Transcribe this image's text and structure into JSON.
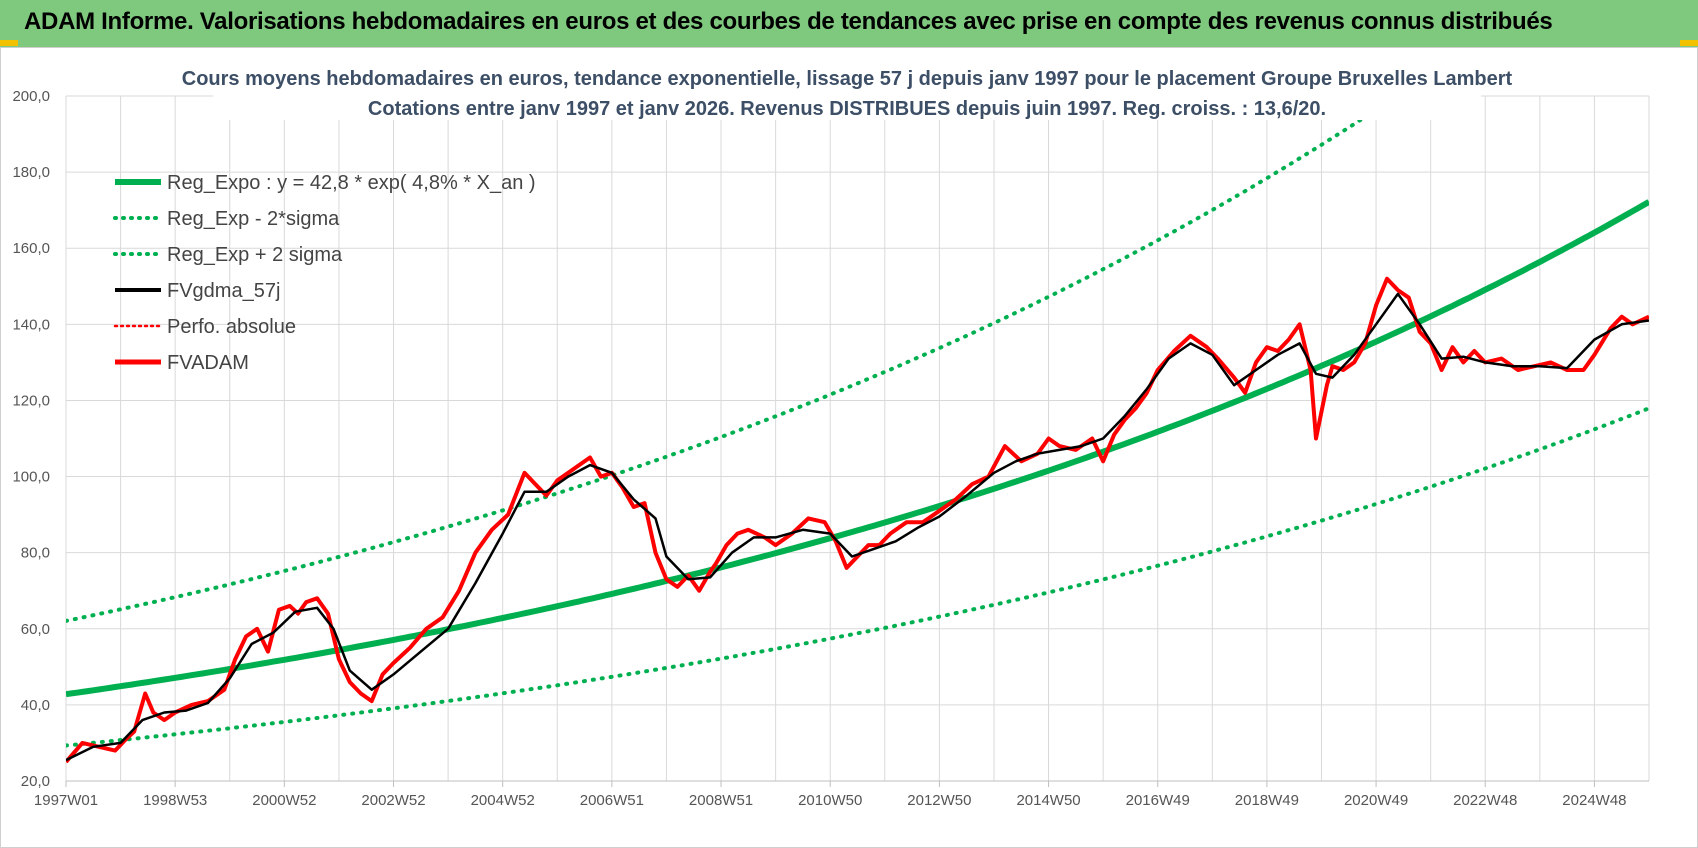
{
  "banner": {
    "title": "ADAM Informe. Valorisations hebdomadaires en euros et des courbes de tendances avec prise en compte des revenus connus distribués"
  },
  "colors": {
    "green": "#00b050",
    "black": "#000000",
    "red": "#ff0000",
    "grid": "#d9d9d9",
    "title": "#3d4f66",
    "banner": "#7fc97f"
  },
  "chart_data": {
    "type": "line",
    "title": "Cours moyens hebdomadaires en euros, tendance exponentielle, lissage 57 j depuis janv 1997 pour le placement Groupe Bruxelles Lambert",
    "subtitle": "Cotations entre janv 1997 et janv 2026. Revenus DISTRIBUES depuis juin 1997. Reg. croiss. : 13,6/20.",
    "xlabel": "",
    "ylabel": "",
    "x_range": [
      1997.0,
      2026.0
    ],
    "ylim": [
      20,
      200
    ],
    "y_ticks": [
      20,
      40,
      60,
      80,
      100,
      120,
      140,
      160,
      180,
      200
    ],
    "y_tick_labels": [
      "20,0",
      "40,0",
      "60,0",
      "80,0",
      "100,0",
      "120,0",
      "140,0",
      "160,0",
      "180,0",
      "200,0"
    ],
    "x_ticks": [
      1997.0,
      1999.0,
      2001.0,
      2003.0,
      2005.0,
      2007.0,
      2009.0,
      2011.0,
      2013.0,
      2015.0,
      2017.0,
      2019.0,
      2021.0,
      2023.0,
      2025.0
    ],
    "x_tick_labels": [
      "1997W01",
      "1998W53",
      "2000W52",
      "2002W52",
      "2004W52",
      "2006W51",
      "2008W51",
      "2010W50",
      "2012W50",
      "2014W50",
      "2016W49",
      "2018W49",
      "2020W49",
      "2022W48",
      "2024W48"
    ],
    "grid": true,
    "legend_position": "top-left",
    "legend": [
      "Reg_Expo : y = 42,8 * exp( 4,8% *  X_an )",
      "Reg_Exp - 2*sigma",
      "Reg_Exp + 2 sigma",
      "FVgdma_57j",
      "Perfo. absolue",
      "FVADAM"
    ],
    "regression": {
      "a": 42.8,
      "rate": 0.048,
      "x0": 1997.0,
      "upper_factor": 1.45,
      "lower_factor": 0.685
    },
    "series": [
      {
        "name": "FVADAM",
        "x": [
          1997.0,
          1997.3,
          1997.6,
          1997.9,
          1998.1,
          1998.25,
          1998.45,
          1998.6,
          1998.8,
          1999.0,
          1999.3,
          1999.6,
          1999.9,
          2000.1,
          2000.3,
          2000.5,
          2000.7,
          2000.9,
          2001.1,
          2001.25,
          2001.4,
          2001.6,
          2001.8,
          2002.0,
          2002.2,
          2002.4,
          2002.6,
          2002.8,
          2003.0,
          2003.3,
          2003.6,
          2003.9,
          2004.2,
          2004.5,
          2004.8,
          2005.1,
          2005.4,
          2005.6,
          2005.8,
          2006.0,
          2006.2,
          2006.4,
          2006.6,
          2006.8,
          2007.0,
          2007.2,
          2007.4,
          2007.6,
          2007.8,
          2008.0,
          2008.2,
          2008.4,
          2008.6,
          2008.8,
          2008.9,
          2009.1,
          2009.3,
          2009.5,
          2009.8,
          2010.0,
          2010.3,
          2010.6,
          2010.9,
          2011.1,
          2011.3,
          2011.5,
          2011.7,
          2011.9,
          2012.1,
          2012.4,
          2012.7,
          2013.0,
          2013.3,
          2013.6,
          2013.9,
          2014.2,
          2014.5,
          2014.8,
          2015.0,
          2015.2,
          2015.5,
          2015.8,
          2016.0,
          2016.2,
          2016.4,
          2016.6,
          2016.8,
          2017.0,
          2017.3,
          2017.6,
          2017.9,
          2018.1,
          2018.4,
          2018.6,
          2018.8,
          2019.0,
          2019.2,
          2019.4,
          2019.6,
          2019.8,
          2019.9,
          2020.1,
          2020.2,
          2020.4,
          2020.6,
          2020.8,
          2021.0,
          2021.2,
          2021.4,
          2021.6,
          2021.8,
          2022.0,
          2022.2,
          2022.4,
          2022.6,
          2022.8,
          2023.0,
          2023.3,
          2023.6,
          2023.9,
          2024.2,
          2024.5,
          2024.8,
          2025.0,
          2025.3,
          2025.5,
          2025.7,
          2026.0
        ],
        "values": [
          25,
          30,
          29,
          28,
          31,
          33,
          43,
          38,
          36,
          38,
          40,
          41,
          44,
          52,
          58,
          60,
          54,
          65,
          66,
          64,
          67,
          68,
          64,
          52,
          46,
          43,
          41,
          48,
          51,
          55,
          60,
          63,
          70,
          80,
          86,
          90,
          101,
          98,
          95,
          99,
          101,
          103,
          105,
          100,
          101,
          97,
          92,
          93,
          80,
          73,
          71,
          74,
          70,
          75,
          77,
          82,
          85,
          86,
          84,
          82,
          85,
          89,
          88,
          83,
          76,
          79,
          82,
          82,
          85,
          88,
          88,
          91,
          94,
          98,
          100,
          108,
          104,
          106,
          110,
          108,
          107,
          110,
          104,
          111,
          115,
          118,
          122,
          128,
          133,
          137,
          134,
          131,
          126,
          122,
          130,
          134,
          133,
          136,
          140,
          128,
          110,
          124,
          129,
          128,
          130,
          135,
          145,
          152,
          149,
          147,
          138,
          135,
          128,
          134,
          130,
          133,
          130,
          131,
          128,
          129,
          130,
          128,
          128,
          132,
          139,
          142,
          140,
          142
        ]
      },
      {
        "name": "FVgdma_57j",
        "x": [
          1997.0,
          1997.5,
          1998.0,
          1998.4,
          1998.8,
          1999.2,
          1999.6,
          2000.0,
          2000.4,
          2000.8,
          2001.2,
          2001.6,
          2001.9,
          2002.2,
          2002.6,
          2003.0,
          2003.5,
          2004.0,
          2004.5,
          2005.0,
          2005.4,
          2005.8,
          2006.2,
          2006.6,
          2007.0,
          2007.4,
          2007.8,
          2008.0,
          2008.4,
          2008.8,
          2009.2,
          2009.6,
          2010.0,
          2010.5,
          2011.0,
          2011.4,
          2011.8,
          2012.2,
          2012.6,
          2013.0,
          2013.5,
          2014.0,
          2014.4,
          2014.8,
          2015.2,
          2015.6,
          2016.0,
          2016.4,
          2016.8,
          2017.2,
          2017.6,
          2018.0,
          2018.4,
          2018.8,
          2019.2,
          2019.6,
          2019.9,
          2020.2,
          2020.6,
          2021.0,
          2021.4,
          2021.8,
          2022.2,
          2022.6,
          2023.0,
          2023.5,
          2024.0,
          2024.5,
          2025.0,
          2025.5,
          2026.0
        ],
        "values": [
          25.5,
          29,
          30,
          36,
          38,
          38.5,
          40.5,
          47,
          56,
          59,
          64.5,
          65.5,
          60,
          49,
          44,
          48,
          54,
          60,
          72,
          85,
          96,
          96,
          100,
          103,
          101,
          94,
          89,
          79,
          73,
          73.5,
          80,
          84,
          84,
          86,
          85,
          79,
          81,
          83,
          86.5,
          89.5,
          95,
          101,
          104,
          106,
          107,
          108,
          110,
          116,
          123,
          131,
          135,
          132,
          124,
          128,
          132,
          135,
          127,
          126,
          132,
          140,
          148,
          140,
          131,
          131.5,
          130,
          129,
          129,
          128.5,
          136,
          140,
          141
        ]
      }
    ]
  }
}
